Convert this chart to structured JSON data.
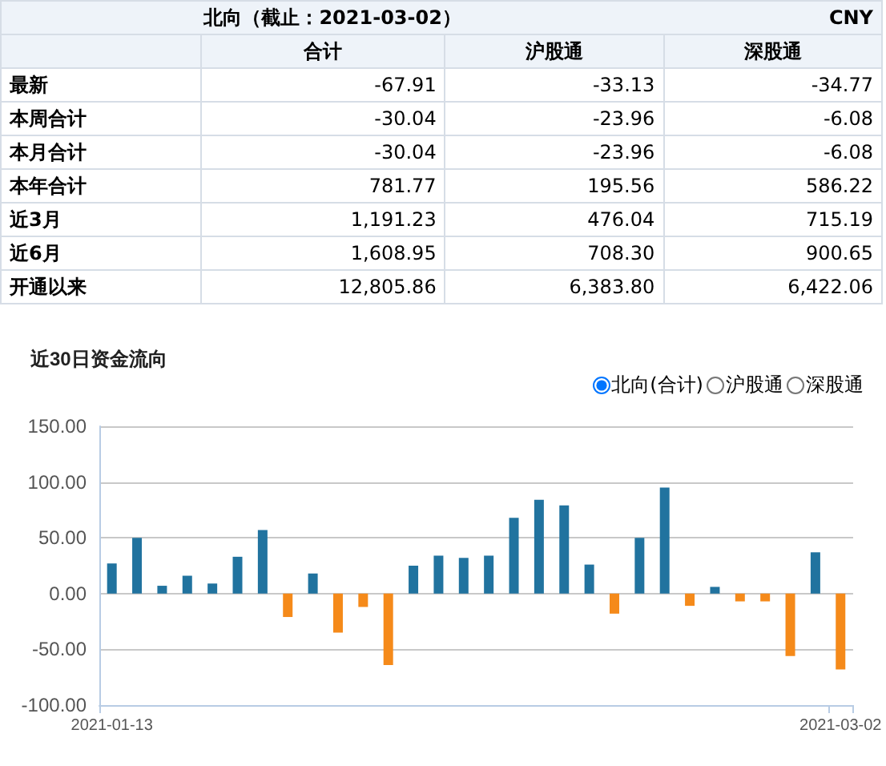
{
  "chart_data": [
    {
      "type": "other",
      "title": "北向（截止：2021-03-02）",
      "annotations": [
        "CNY"
      ],
      "categories": [
        "合计",
        "沪股通",
        "深股通"
      ],
      "y_categories": [
        "最新",
        "本周合计",
        "本月合计",
        "本年合计",
        "近3月",
        "近6月",
        "开通以来"
      ],
      "cells": [
        [
          "-67.91",
          "-33.13",
          "-34.77"
        ],
        [
          "-30.04",
          "-23.96",
          "-6.08"
        ],
        [
          "-30.04",
          "-23.96",
          "-6.08"
        ],
        [
          "781.77",
          "195.56",
          "586.22"
        ],
        [
          "1,191.23",
          "476.04",
          "715.19"
        ],
        [
          "1,608.95",
          "708.30",
          "900.65"
        ],
        [
          "12,805.86",
          "6,383.80",
          "6,422.06"
        ]
      ]
    },
    {
      "type": "bar",
      "title": "近30日资金流向",
      "annotations": [
        "沪股通",
        "深股通"
      ],
      "categories": [
        "2021-01-13",
        null,
        null,
        null,
        null,
        null,
        null,
        null,
        null,
        null,
        null,
        null,
        null,
        null,
        null,
        null,
        null,
        null,
        null,
        null,
        null,
        null,
        null,
        null,
        null,
        null,
        null,
        null,
        null,
        "2021-03-02"
      ],
      "series": [
        {
          "name": "北向(合计)",
          "values": [
            27,
            50,
            7,
            16,
            9,
            33,
            57,
            -21,
            18,
            -35,
            -12,
            -64,
            25,
            34,
            32,
            34,
            68,
            84,
            79,
            26,
            -18,
            50,
            95,
            -11,
            6,
            -7,
            -7,
            -56,
            37,
            -68
          ],
          "colors": [
            "#21739f",
            "#21739f",
            "#21739f",
            "#21739f",
            "#21739f",
            "#21739f",
            "#21739f",
            "#f58a1a",
            "#21739f",
            "#f58a1a",
            "#f58a1a",
            "#f58a1a",
            "#21739f",
            "#21739f",
            "#21739f",
            "#21739f",
            "#21739f",
            "#21739f",
            "#21739f",
            "#21739f",
            "#f58a1a",
            "#21739f",
            "#21739f",
            "#f58a1a",
            "#21739f",
            "#f58a1a",
            "#f58a1a",
            "#f58a1a",
            "#21739f",
            "#f58a1a"
          ]
        }
      ],
      "ylim": [
        -100,
        150
      ],
      "yticks": [
        {
          "value": -100,
          "label": "-100.00"
        },
        {
          "value": -50,
          "label": "-50.00"
        },
        {
          "value": 0,
          "label": "0.00"
        },
        {
          "value": 50,
          "label": "50.00"
        },
        {
          "value": 100,
          "label": "100.00"
        },
        {
          "value": 150,
          "label": "150.00"
        }
      ],
      "grid": "y",
      "legend": "top right"
    }
  ]
}
